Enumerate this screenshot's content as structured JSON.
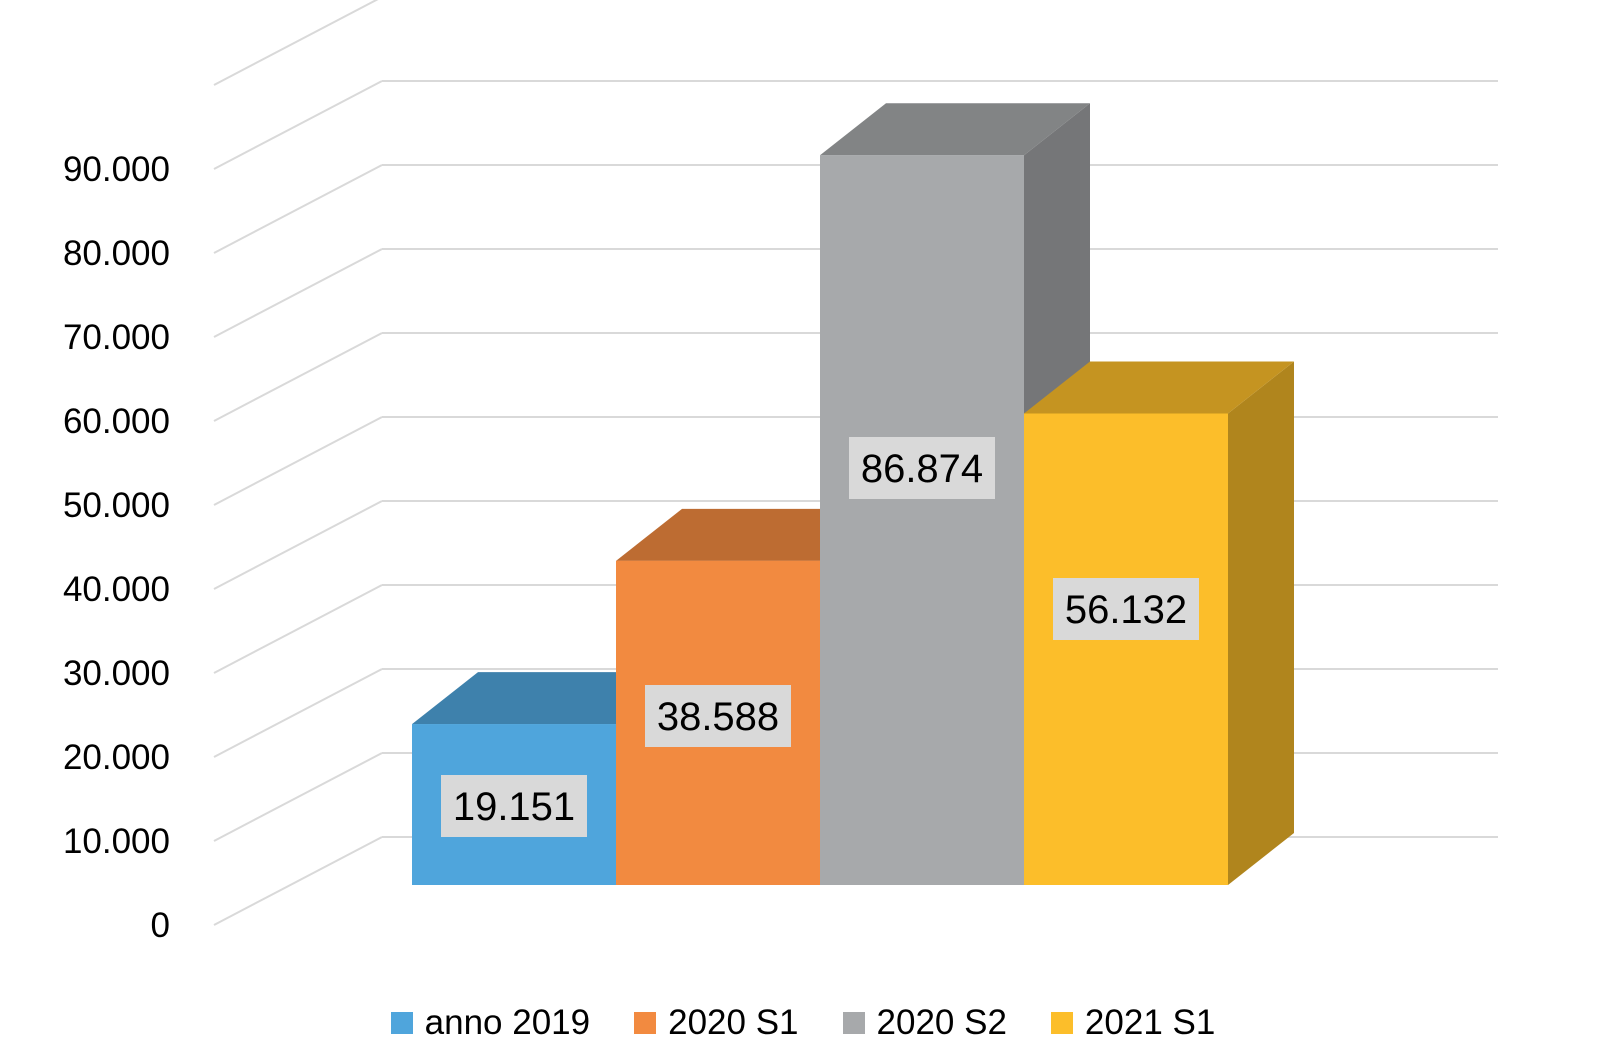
{
  "chart_data": {
    "type": "bar",
    "categories": [
      "anno 2019",
      "2020 S1",
      "2020 S2",
      "2021 S1"
    ],
    "values": [
      19151,
      38588,
      86874,
      56132
    ],
    "data_labels": [
      "19.151",
      "38.588",
      "86.874",
      "56.132"
    ],
    "colors": [
      "#4fa5dc",
      "#f28a40",
      "#a7a9ab",
      "#fcbe2a"
    ],
    "ylim": [
      0,
      100000
    ],
    "yticks": [
      0,
      10000,
      20000,
      30000,
      40000,
      50000,
      60000,
      70000,
      80000,
      90000
    ],
    "ytick_labels": [
      "0",
      "10.000",
      "20.000",
      "30.000",
      "40.000",
      "50.000",
      "60.000",
      "70.000",
      "80.000",
      "90.000"
    ],
    "grid": true,
    "style": "3d-column",
    "legend": {
      "position": "bottom",
      "entries": [
        "anno 2019",
        "2020 S1",
        "2020 S2",
        "2021 S1"
      ]
    }
  }
}
